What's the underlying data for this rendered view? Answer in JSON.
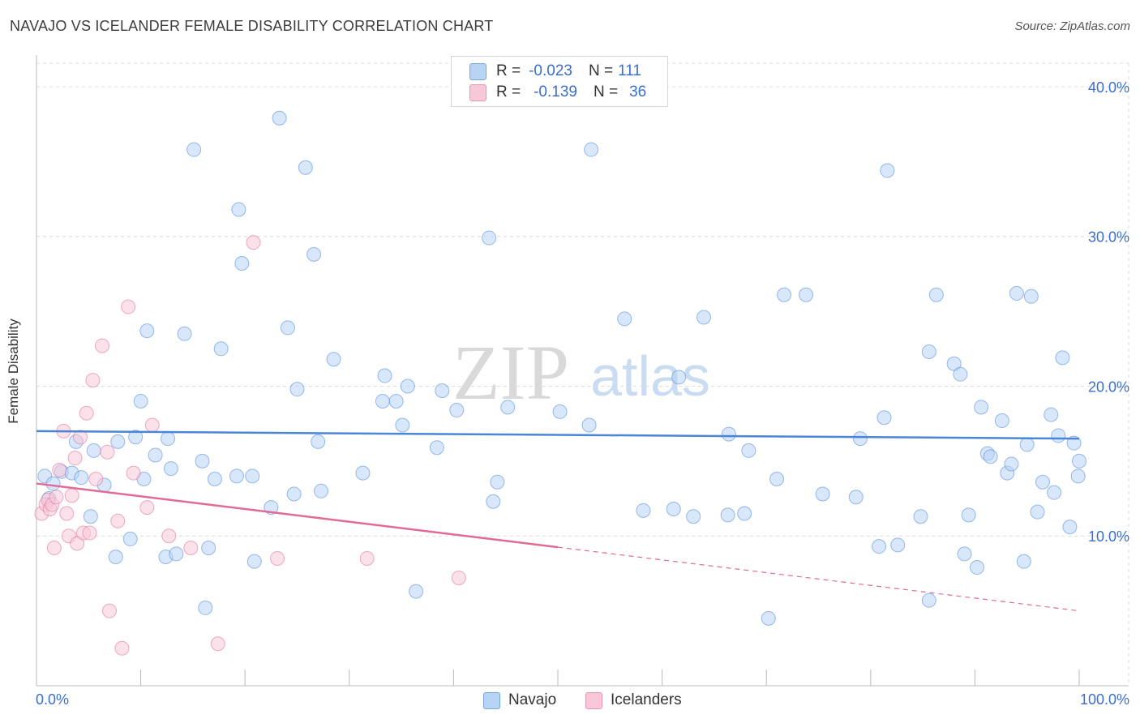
{
  "header": {
    "title": "NAVAJO VS ICELANDER FEMALE DISABILITY CORRELATION CHART",
    "source": "Source: ZipAtlas.com"
  },
  "watermark": {
    "zip": "ZIP",
    "atlas": "atlas"
  },
  "legend": {
    "rows": [
      {
        "r_label": "R =",
        "r_value": "-0.023",
        "n_label": "N =",
        "n_value": "111",
        "color": "#b8d4f5"
      },
      {
        "r_label": "R =",
        "r_value": "-0.139",
        "n_label": "N =",
        "n_value": "36",
        "color": "#f8c8d8"
      }
    ]
  },
  "bottom_legend": [
    {
      "label": "Navajo",
      "color": "#b8d4f5"
    },
    {
      "label": "Icelanders",
      "color": "#f8c8d8"
    }
  ],
  "chart_data": {
    "type": "scatter",
    "title": "NAVAJO VS ICELANDER FEMALE DISABILITY CORRELATION CHART",
    "xlabel": "",
    "ylabel": "Female Disability",
    "xlim": [
      0,
      100
    ],
    "ylim": [
      0,
      42
    ],
    "x_tick_labels": [
      "0.0%",
      "100.0%"
    ],
    "y_ticks": [
      10,
      20,
      30,
      40
    ],
    "y_tick_labels": [
      "10.0%",
      "20.0%",
      "30.0%",
      "40.0%"
    ],
    "grid": true,
    "series": [
      {
        "name": "Navajo",
        "color": "#4a86d8",
        "fill": "#b8d4f5",
        "trend": {
          "x": [
            0,
            100
          ],
          "y": [
            17.0,
            16.5
          ],
          "dashed_from": null
        },
        "points": [
          [
            0.8,
            14.0
          ],
          [
            1.6,
            13.5
          ],
          [
            2.4,
            14.3
          ],
          [
            3.4,
            14.2
          ],
          [
            4.3,
            13.9
          ],
          [
            1.2,
            12.5
          ],
          [
            3.8,
            16.3
          ],
          [
            5.5,
            15.7
          ],
          [
            5.2,
            11.3
          ],
          [
            6.5,
            13.4
          ],
          [
            7.6,
            8.6
          ],
          [
            7.8,
            16.3
          ],
          [
            9.0,
            9.8
          ],
          [
            9.5,
            16.6
          ],
          [
            10.0,
            19.0
          ],
          [
            10.3,
            13.8
          ],
          [
            10.6,
            23.7
          ],
          [
            11.4,
            15.4
          ],
          [
            12.4,
            8.6
          ],
          [
            12.6,
            16.5
          ],
          [
            12.9,
            14.5
          ],
          [
            13.4,
            8.8
          ],
          [
            14.2,
            23.5
          ],
          [
            15.1,
            35.8
          ],
          [
            15.9,
            15.0
          ],
          [
            16.2,
            5.2
          ],
          [
            17.1,
            13.8
          ],
          [
            17.7,
            22.5
          ],
          [
            19.2,
            14.0
          ],
          [
            19.4,
            31.8
          ],
          [
            19.7,
            28.2
          ],
          [
            20.7,
            14.0
          ],
          [
            20.9,
            8.3
          ],
          [
            22.5,
            11.9
          ],
          [
            23.3,
            37.9
          ],
          [
            24.1,
            23.9
          ],
          [
            24.7,
            12.8
          ],
          [
            25.0,
            19.8
          ],
          [
            25.8,
            34.6
          ],
          [
            26.6,
            28.8
          ],
          [
            27.0,
            16.3
          ],
          [
            27.3,
            13.0
          ],
          [
            28.5,
            21.8
          ],
          [
            31.3,
            14.2
          ],
          [
            33.2,
            19.0
          ],
          [
            33.4,
            20.7
          ],
          [
            34.5,
            19.0
          ],
          [
            35.1,
            17.4
          ],
          [
            35.6,
            20.0
          ],
          [
            36.4,
            6.3
          ],
          [
            38.4,
            15.9
          ],
          [
            40.3,
            18.4
          ],
          [
            43.4,
            29.9
          ],
          [
            43.8,
            12.3
          ],
          [
            44.2,
            13.6
          ],
          [
            45.2,
            18.6
          ],
          [
            53.0,
            17.4
          ],
          [
            53.2,
            35.8
          ],
          [
            56.4,
            24.5
          ],
          [
            58.2,
            11.7
          ],
          [
            61.1,
            11.8
          ],
          [
            61.6,
            20.6
          ],
          [
            63.0,
            11.3
          ],
          [
            64.0,
            24.6
          ],
          [
            66.4,
            16.8
          ],
          [
            67.9,
            11.5
          ],
          [
            68.3,
            15.7
          ],
          [
            70.2,
            4.5
          ],
          [
            71.0,
            13.8
          ],
          [
            71.7,
            26.1
          ],
          [
            73.8,
            26.1
          ],
          [
            75.4,
            12.8
          ],
          [
            78.6,
            12.6
          ],
          [
            79.0,
            16.5
          ],
          [
            80.8,
            9.3
          ],
          [
            81.3,
            17.9
          ],
          [
            81.6,
            34.4
          ],
          [
            82.6,
            9.4
          ],
          [
            84.8,
            11.3
          ],
          [
            85.6,
            5.7
          ],
          [
            85.6,
            22.3
          ],
          [
            86.3,
            26.1
          ],
          [
            88.0,
            21.5
          ],
          [
            88.6,
            20.8
          ],
          [
            89.0,
            8.8
          ],
          [
            89.4,
            11.4
          ],
          [
            90.2,
            7.9
          ],
          [
            90.6,
            18.6
          ],
          [
            91.2,
            15.5
          ],
          [
            91.5,
            15.3
          ],
          [
            92.6,
            17.7
          ],
          [
            93.1,
            14.2
          ],
          [
            93.5,
            14.8
          ],
          [
            94.0,
            26.2
          ],
          [
            94.7,
            8.3
          ],
          [
            95.0,
            16.1
          ],
          [
            95.4,
            26.0
          ],
          [
            96.0,
            11.6
          ],
          [
            96.5,
            13.6
          ],
          [
            97.3,
            18.1
          ],
          [
            97.6,
            12.9
          ],
          [
            98.0,
            16.7
          ],
          [
            98.4,
            21.9
          ],
          [
            99.1,
            10.6
          ],
          [
            99.5,
            16.2
          ],
          [
            99.9,
            14.0
          ],
          [
            100.0,
            15.0
          ],
          [
            38.9,
            19.7
          ],
          [
            50.2,
            18.3
          ],
          [
            66.3,
            11.4
          ],
          [
            16.5,
            9.2
          ]
        ]
      },
      {
        "name": "Icelanders",
        "color": "#e06b96",
        "fill": "#f8c8d8",
        "trend": {
          "x": [
            0,
            100
          ],
          "y": [
            13.5,
            5.0
          ],
          "dashed_from": 50
        },
        "points": [
          [
            0.5,
            11.5
          ],
          [
            0.9,
            12.1
          ],
          [
            1.1,
            12.4
          ],
          [
            1.3,
            11.8
          ],
          [
            1.5,
            12.1
          ],
          [
            1.7,
            9.2
          ],
          [
            1.9,
            12.6
          ],
          [
            2.2,
            14.4
          ],
          [
            2.6,
            17.0
          ],
          [
            2.9,
            11.5
          ],
          [
            3.1,
            10.0
          ],
          [
            3.4,
            12.7
          ],
          [
            3.7,
            15.2
          ],
          [
            3.9,
            9.5
          ],
          [
            4.2,
            16.6
          ],
          [
            4.5,
            10.2
          ],
          [
            4.8,
            18.2
          ],
          [
            5.1,
            10.2
          ],
          [
            5.4,
            20.4
          ],
          [
            5.7,
            13.8
          ],
          [
            6.3,
            22.7
          ],
          [
            6.8,
            15.6
          ],
          [
            7.0,
            5.0
          ],
          [
            7.8,
            11.0
          ],
          [
            8.2,
            2.5
          ],
          [
            8.8,
            25.3
          ],
          [
            9.3,
            14.2
          ],
          [
            10.6,
            11.9
          ],
          [
            11.1,
            17.4
          ],
          [
            12.7,
            10.0
          ],
          [
            14.8,
            9.2
          ],
          [
            17.4,
            2.8
          ],
          [
            20.8,
            29.6
          ],
          [
            23.1,
            8.5
          ],
          [
            31.7,
            8.5
          ],
          [
            40.5,
            7.2
          ]
        ]
      }
    ]
  }
}
